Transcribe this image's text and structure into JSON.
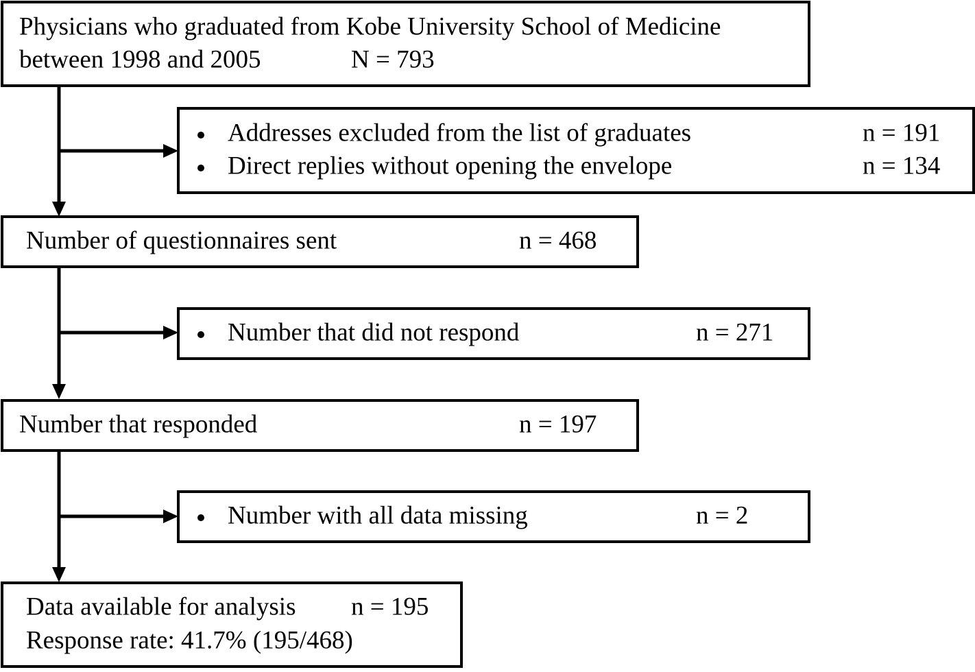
{
  "nodes": [
    {
      "text": [
        "Physicians who graduated from Kobe University School of Medicine",
        "between 1998 and 2005"
      ],
      "count": "N = 793"
    },
    {
      "items": [
        {
          "text": "Addresses excluded from the list of graduates",
          "count": "n = 191"
        },
        {
          "text": "Direct replies without opening the envelope",
          "count": "n = 134"
        }
      ]
    },
    {
      "text": [
        "Number of questionnaires sent"
      ],
      "count": "n = 468"
    },
    {
      "items": [
        {
          "text": "Number that did not respond",
          "count": "n = 271"
        }
      ]
    },
    {
      "text": [
        "Number that responded"
      ],
      "count": "n = 197"
    },
    {
      "items": [
        {
          "text": "Number with all data missing",
          "count": "n = 2"
        }
      ]
    },
    {
      "text": [
        "Data available for analysis",
        "Response rate: 41.7% (195/468)"
      ],
      "count": "n = 195"
    }
  ]
}
